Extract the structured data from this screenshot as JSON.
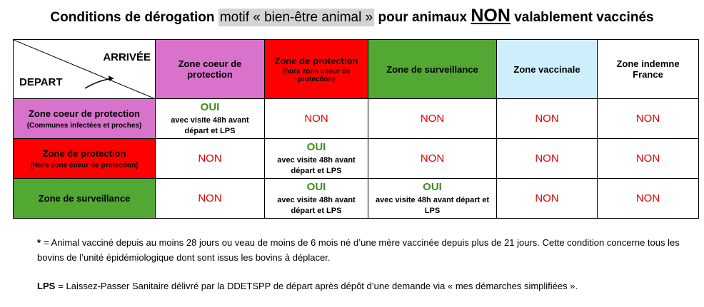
{
  "title": {
    "part1": "Conditions de dérogation",
    "highlight": "motif « bien-être animal »",
    "part2": "pour animaux",
    "emphasis": "NON",
    "part3": "valablement vaccinés"
  },
  "table": {
    "corner": {
      "arrival": "ARRIVÉE",
      "departure": "DEPART"
    },
    "columns": [
      {
        "label": "Zone coeur de protection",
        "color": "#d872cb"
      },
      {
        "label": "Zone de protection",
        "note": "(hors zone coeur de protection)",
        "color": "#ff0000"
      },
      {
        "label": "Zone de surveillance",
        "color": "#53a833"
      },
      {
        "label": "Zone vaccinale",
        "color": "#cdeffb"
      },
      {
        "label": "Zone indemne France",
        "color": "#ffffff"
      }
    ],
    "rows": [
      {
        "label": "Zone coeur de protection",
        "note": "(Communes infectées et proches)",
        "color": "#d872cb",
        "cells": [
          {
            "answer": "OUI",
            "detail": "avec visite 48h avant départ et LPS"
          },
          {
            "answer": "NON"
          },
          {
            "answer": "NON"
          },
          {
            "answer": "NON"
          },
          {
            "answer": "NON"
          }
        ]
      },
      {
        "label": "Zone de protection",
        "note": "(Hors zone coeur de protection)",
        "color": "#ff0000",
        "cells": [
          {
            "answer": "NON"
          },
          {
            "answer": "OUI",
            "detail": "avec visite 48h avant départ et LPS"
          },
          {
            "answer": "NON"
          },
          {
            "answer": "NON"
          },
          {
            "answer": "NON"
          }
        ]
      },
      {
        "label": "Zone de surveillance",
        "color": "#53a833",
        "cells": [
          {
            "answer": "NON"
          },
          {
            "answer": "OUI",
            "detail": "avec visite 48h avant départ et LPS"
          },
          {
            "answer": "OUI",
            "detail": "avec visite 48h avant départ et LPS"
          },
          {
            "answer": "NON"
          },
          {
            "answer": "NON"
          }
        ]
      }
    ]
  },
  "notes": [
    {
      "marker": "*",
      "text": "= Animal vacciné depuis au moins 28 jours ou veau de moins de 6 mois né d’une mère vaccinée depuis plus de 21 jours. Cette condition concerne tous les bovins de l’unité épidémiologique dont sont issus les bovins à déplacer."
    },
    {
      "marker": "LPS",
      "text": "= Laissez-Passer Sanitaire délivré par la DDETSPP de départ après dépôt d’une demande via « mes démarches simplifiées »."
    }
  ]
}
